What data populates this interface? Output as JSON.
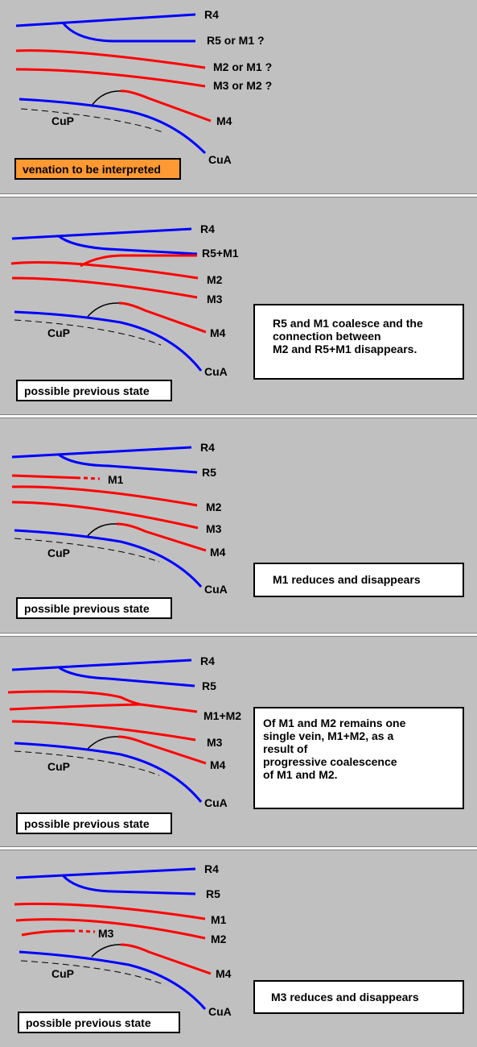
{
  "colors": {
    "radial": "#0000ff",
    "media": "#ff0000",
    "cross": "#000000",
    "caption_highlight": "#ff9933"
  },
  "panel1": {
    "caption": "venation to be interpreted",
    "labels": {
      "r4": "R4",
      "r5": "R5 or M1 ?",
      "m2": "M2 or M1 ?",
      "m3": "M3 or M2 ?",
      "m4": "M4",
      "cua": "CuA",
      "cup": "CuP"
    }
  },
  "panel2": {
    "caption": "possible previous state",
    "labels": {
      "r4": "R4",
      "r5m1": "R5+M1",
      "m2": "M2",
      "m3": "M3",
      "m4": "M4",
      "cua": "CuA",
      "cup": "CuP"
    },
    "note": [
      "R5 and M1  coalesce and the",
      "connection between",
      "M2 and R5+M1 disappears."
    ]
  },
  "panel3": {
    "caption": "possible previous state",
    "labels": {
      "r4": "R4",
      "r5": "R5",
      "m1": "M1",
      "m2": "M2",
      "m3": "M3",
      "m4": "M4",
      "cua": "CuA",
      "cup": "CuP"
    },
    "note": [
      "M1  reduces and disappears"
    ]
  },
  "panel4": {
    "caption": "possible previous state",
    "labels": {
      "r4": "R4",
      "r5": "R5",
      "m1m2": "M1+M2",
      "m3": "M3",
      "m4": "M4",
      "cua": "CuA",
      "cup": "CuP"
    },
    "note": [
      "Of  M1  and  M2  remains one",
      "single vein, M1+M2, as a",
      "result of",
      "progressive coalescence",
      "of  M1  and  M2."
    ]
  },
  "panel5": {
    "caption": "possible previous state",
    "labels": {
      "r4": "R4",
      "r5": "R5",
      "m1": "M1",
      "m2": "M2",
      "m3": "M3",
      "m4": "M4",
      "cua": "CuA",
      "cup": "CuP"
    },
    "note": [
      "M3  reduces and disappears"
    ]
  }
}
